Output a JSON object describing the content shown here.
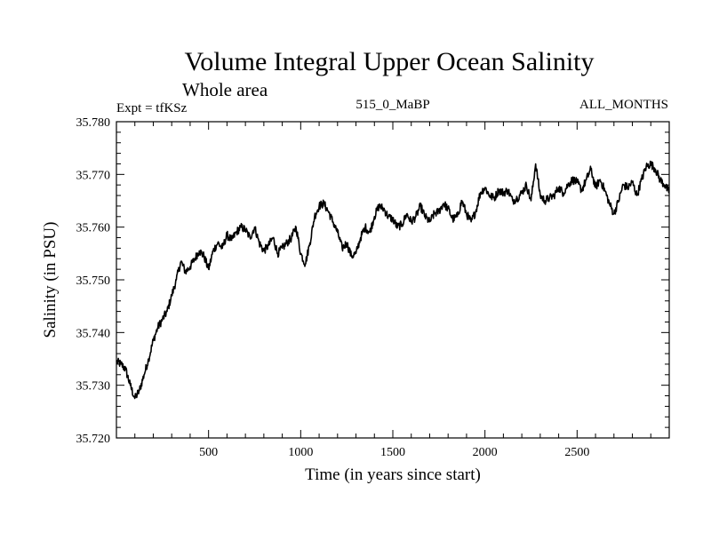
{
  "chart_data": {
    "type": "line",
    "title": "Volume Integral Upper Ocean Salinity",
    "subtitle": "Whole area",
    "header_left": "Expt = tfKSz",
    "header_center": "515_0_MaBP",
    "header_right": "ALL_MONTHS",
    "xlabel": "Time (in years since start)",
    "ylabel": "Salinity (in PSU)",
    "xlim": [
      0,
      3000
    ],
    "ylim": [
      35.72,
      35.78
    ],
    "x_ticks": [
      500,
      1000,
      1500,
      2000,
      2500
    ],
    "x_tick_labels": [
      "500",
      "1000",
      "1500",
      "2000",
      "2500"
    ],
    "y_ticks": [
      35.72,
      35.73,
      35.74,
      35.75,
      35.76,
      35.77,
      35.78
    ],
    "y_tick_labels": [
      "35.720",
      "35.730",
      "35.740",
      "35.750",
      "35.760",
      "35.770",
      "35.780"
    ],
    "series": [
      {
        "name": "salinity",
        "color": "#000000",
        "x": [
          0,
          25,
          50,
          75,
          100,
          125,
          150,
          175,
          200,
          225,
          250,
          275,
          300,
          325,
          350,
          375,
          400,
          425,
          450,
          475,
          500,
          525,
          550,
          575,
          600,
          625,
          650,
          675,
          700,
          725,
          750,
          775,
          800,
          825,
          850,
          875,
          900,
          925,
          950,
          975,
          1000,
          1025,
          1050,
          1075,
          1100,
          1125,
          1150,
          1175,
          1200,
          1225,
          1250,
          1275,
          1300,
          1325,
          1350,
          1375,
          1400,
          1425,
          1450,
          1475,
          1500,
          1525,
          1550,
          1575,
          1600,
          1625,
          1650,
          1675,
          1700,
          1725,
          1750,
          1775,
          1800,
          1825,
          1850,
          1875,
          1900,
          1925,
          1950,
          1975,
          2000,
          2025,
          2050,
          2075,
          2100,
          2125,
          2150,
          2175,
          2200,
          2225,
          2250,
          2275,
          2300,
          2325,
          2350,
          2375,
          2400,
          2425,
          2450,
          2475,
          2500,
          2525,
          2550,
          2575,
          2600,
          2625,
          2650,
          2675,
          2700,
          2725,
          2750,
          2775,
          2800,
          2825,
          2850,
          2875,
          2900,
          2925,
          2950,
          2975,
          3000
        ],
        "y": [
          35.7345,
          35.734,
          35.733,
          35.73,
          35.7275,
          35.729,
          35.732,
          35.735,
          35.7385,
          35.741,
          35.7425,
          35.744,
          35.747,
          35.75,
          35.7535,
          35.7515,
          35.7525,
          35.754,
          35.7555,
          35.7545,
          35.752,
          35.7555,
          35.757,
          35.756,
          35.7585,
          35.7575,
          35.759,
          35.76,
          35.7595,
          35.758,
          35.76,
          35.757,
          35.7555,
          35.7565,
          35.758,
          35.755,
          35.756,
          35.757,
          35.758,
          35.76,
          35.755,
          35.753,
          35.757,
          35.762,
          35.764,
          35.7645,
          35.763,
          35.761,
          35.759,
          35.756,
          35.757,
          35.7545,
          35.755,
          35.758,
          35.76,
          35.759,
          35.762,
          35.764,
          35.7635,
          35.762,
          35.7615,
          35.76,
          35.7605,
          35.7625,
          35.761,
          35.762,
          35.764,
          35.762,
          35.761,
          35.7625,
          35.763,
          35.7645,
          35.7635,
          35.7615,
          35.762,
          35.765,
          35.7625,
          35.761,
          35.763,
          35.7665,
          35.7675,
          35.766,
          35.7655,
          35.767,
          35.7665,
          35.767,
          35.765,
          35.7655,
          35.7665,
          35.768,
          35.765,
          35.772,
          35.766,
          35.765,
          35.7655,
          35.766,
          35.7675,
          35.7665,
          35.768,
          35.769,
          35.7685,
          35.767,
          35.769,
          35.771,
          35.7675,
          35.769,
          35.767,
          35.7645,
          35.7625,
          35.765,
          35.768,
          35.7675,
          35.7685,
          35.766,
          35.769,
          35.7715,
          35.772,
          35.771,
          35.769,
          35.768,
          35.7665
        ]
      }
    ]
  }
}
